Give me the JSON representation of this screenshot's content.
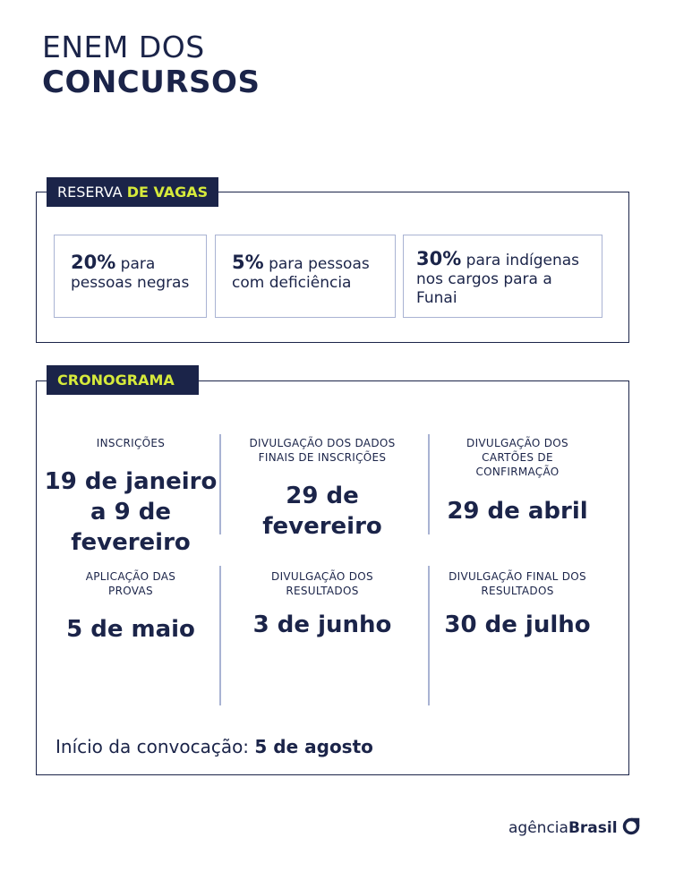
{
  "header": {
    "title_line1": "ENEM DOS",
    "title_line2": "CONCURSOS"
  },
  "reserva": {
    "label_light": "RESERVA",
    "label_bold": "DE VAGAS",
    "items": [
      {
        "bold": "20%",
        "text": "para pessoas negras"
      },
      {
        "bold": "5%",
        "text": "para pessoas com deficiência"
      },
      {
        "bold": "30%",
        "text": "para indígenas nos cargos para a Funai"
      }
    ]
  },
  "cronograma": {
    "label": "CRONOGRAMA",
    "events": [
      {
        "label": "INSCRIÇÕES",
        "date": "19 de janeiro a 9 de fevereiro"
      },
      {
        "label": "DIVULGAÇÃO DOS DADOS FINAIS DE INSCRIÇÕES",
        "date": "29 de fevereiro"
      },
      {
        "label": "DIVULGAÇÃO DOS CARTÕES DE CONFIRMAÇÃO",
        "date": "29 de abril"
      },
      {
        "label": "APLICAÇÃO DAS PROVAS",
        "date": "5 de maio"
      },
      {
        "label": "DIVULGAÇÃO DOS RESULTADOS",
        "date": "3 de junho"
      },
      {
        "label": "DIVULGAÇÃO FINAL DOS RESULTADOS",
        "date": "30 de julho"
      }
    ],
    "convocacao_label": "Início da convocação:",
    "convocacao_date": "5 de agosto"
  },
  "footer": {
    "logo_light": "agência",
    "logo_bold": "Brasil"
  }
}
